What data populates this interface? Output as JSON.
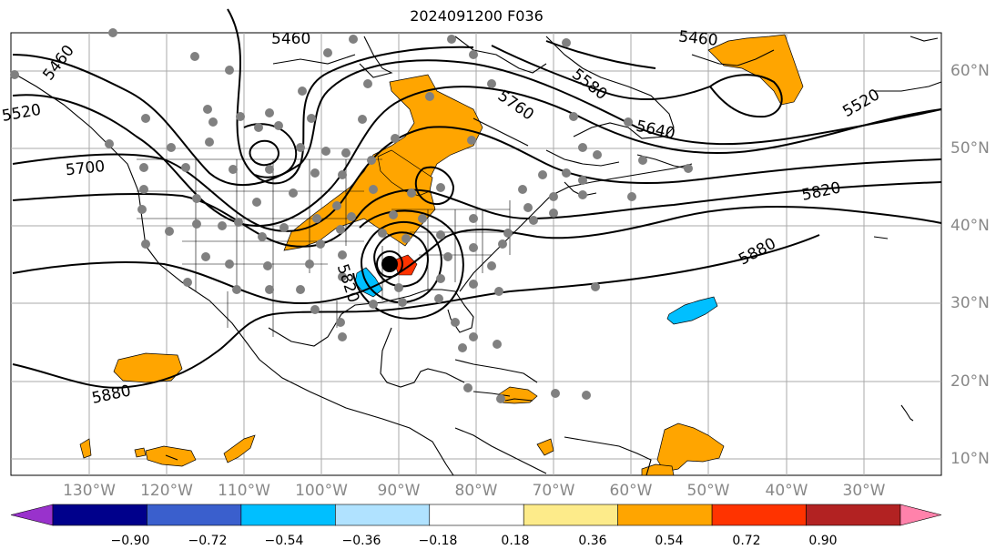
{
  "title": "2024091200 F036",
  "longitude_labels": [
    "130°W",
    "120°W",
    "110°W",
    "100°W",
    "90°W",
    "80°W",
    "70°W",
    "60°W",
    "50°W",
    "40°W",
    "30°W"
  ],
  "latitude_labels": [
    "60°N",
    "50°N",
    "40°N",
    "30°N",
    "20°N",
    "10°N"
  ],
  "contour_labels": [
    "5520",
    "5460",
    "5460",
    "5580",
    "5760",
    "5640",
    "5460",
    "5520",
    "5700",
    "5820",
    "5880",
    "5820",
    "5880"
  ],
  "colorbar": {
    "ticks": [
      "−0.90",
      "−0.72",
      "−0.54",
      "−0.36",
      "−0.18",
      "0.18",
      "0.36",
      "0.54",
      "0.72",
      "0.90"
    ],
    "colors": [
      "#9932cc",
      "#00008b",
      "#3a5fcd",
      "#00bfff",
      "#b0e2ff",
      "#ffffff",
      "#fdeb8a",
      "#ffa500",
      "#ff3300",
      "#b22222",
      "#ff82ab"
    ]
  },
  "colors": {
    "positive_shade": "#ffa500",
    "strong_positive": "#ff3300",
    "negative_shade": "#00bfff",
    "station_dot": "#808080",
    "grid": "#aaaaaa"
  }
}
